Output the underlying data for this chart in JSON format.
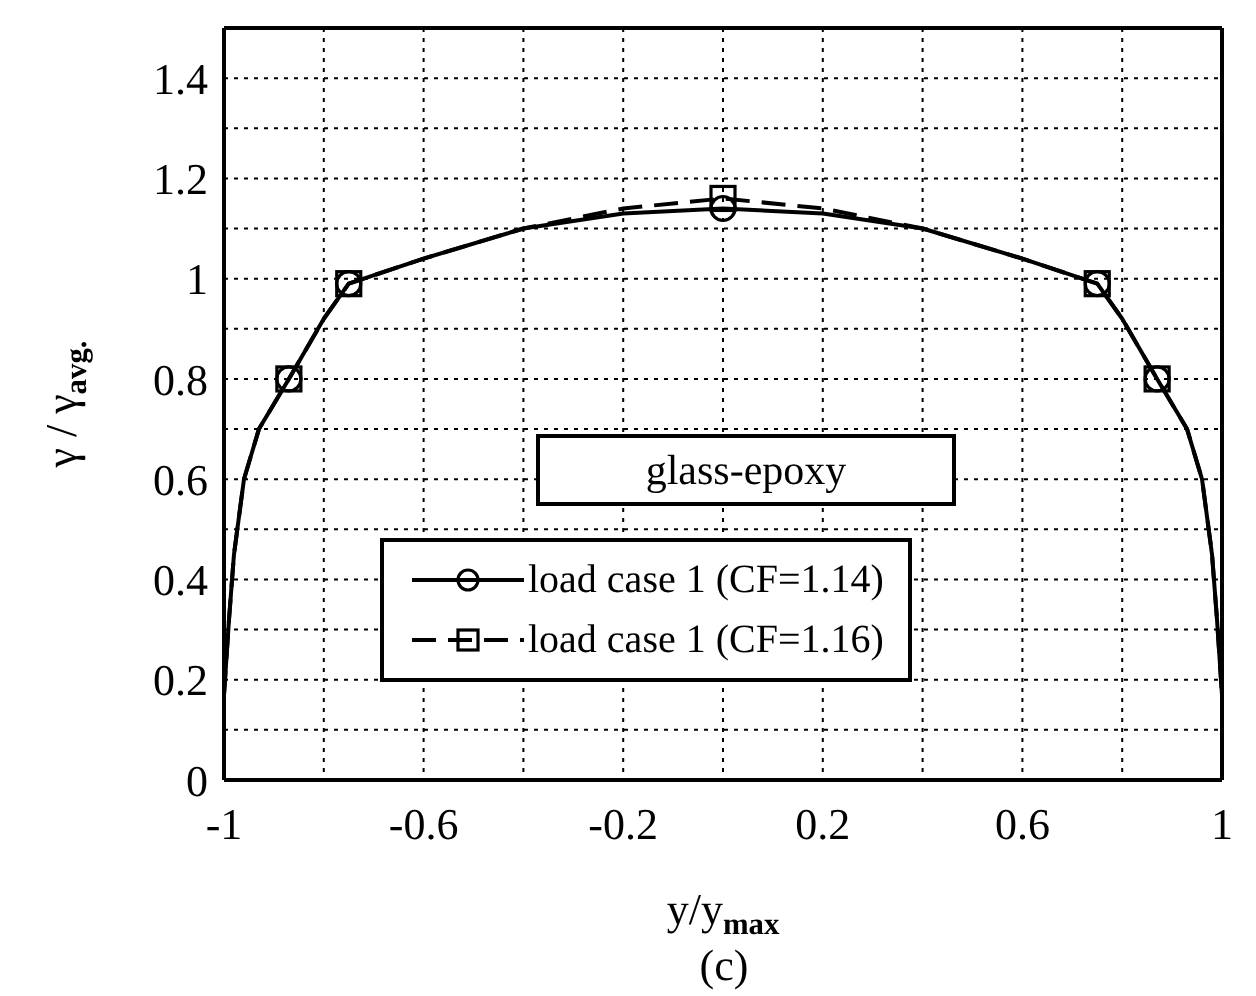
{
  "chart_data": {
    "type": "line",
    "xlabel": "y/y$_{max}$",
    "ylabel": "γ / γ$_{avg.}$",
    "annotations": [
      "glass-epoxy",
      "(c)"
    ],
    "xlim": [
      -1,
      1
    ],
    "xticks": [
      -1,
      {
        "value": -0.8,
        "label": null
      },
      -0.6,
      {
        "value": -0.4,
        "label": null
      },
      -0.2,
      {
        "value": 0,
        "label": null
      },
      0.2,
      {
        "value": 0.4,
        "label": null
      },
      0.6,
      {
        "value": 0.8,
        "label": null
      },
      1
    ],
    "ylim": [
      0,
      1.5
    ],
    "yticks": [
      0,
      {
        "value": 0.1,
        "label": null
      },
      0.2,
      {
        "value": 0.3,
        "label": null
      },
      0.4,
      {
        "value": 0.5,
        "label": null
      },
      0.6,
      {
        "value": 0.7,
        "label": null
      },
      0.8,
      {
        "value": 0.9,
        "label": null
      },
      1,
      {
        "value": 1.1,
        "label": null
      },
      1.2,
      {
        "value": 1.3,
        "label": null
      },
      1.4,
      {
        "value": 1.5,
        "label": null
      }
    ],
    "grid": true,
    "legend": "bottom",
    "series": [
      {
        "name": "load case 1 (CF=1.14)",
        "color": "#000000",
        "line_style": "solid",
        "marker": "none",
        "x": [
          -1,
          -0.99,
          -0.98,
          -0.96,
          -0.93,
          -0.87,
          -0.8,
          -0.75,
          -0.6,
          -0.4,
          -0.2,
          0,
          0.2,
          0.4,
          0.6,
          0.75,
          0.8,
          0.87,
          0.93,
          0.96,
          0.98,
          0.99,
          1
        ],
        "values": [
          0.17,
          0.32,
          0.45,
          0.6,
          0.7,
          0.8,
          0.92,
          0.99,
          1.04,
          1.1,
          1.13,
          1.14,
          1.13,
          1.1,
          1.04,
          0.99,
          0.92,
          0.8,
          0.7,
          0.6,
          0.45,
          0.32,
          0.17
        ]
      },
      {
        "type": "scatter",
        "color": "#000000",
        "marker": "circle",
        "x": [
          -0.87,
          -0.75,
          0,
          0.75,
          0.87
        ],
        "values": [
          0.8,
          0.99,
          1.14,
          0.99,
          0.8
        ]
      },
      {
        "name": "load case 1 (CF=1.16)",
        "color": "#000000",
        "line_style": "dashed",
        "marker": "none",
        "x": [
          -1,
          -0.99,
          -0.98,
          -0.96,
          -0.93,
          -0.87,
          -0.8,
          -0.75,
          -0.6,
          -0.4,
          -0.2,
          0,
          0.2,
          0.4,
          0.6,
          0.75,
          0.8,
          0.87,
          0.93,
          0.96,
          0.98,
          0.99,
          1
        ],
        "values": [
          0.17,
          0.32,
          0.45,
          0.6,
          0.7,
          0.8,
          0.92,
          0.99,
          1.04,
          1.1,
          1.14,
          1.16,
          1.14,
          1.1,
          1.04,
          0.99,
          0.92,
          0.8,
          0.7,
          0.6,
          0.45,
          0.32,
          0.17
        ]
      },
      {
        "type": "scatter",
        "color": "#000000",
        "marker": "square",
        "x": [
          -0.87,
          -0.75,
          0,
          0.75,
          0.87
        ],
        "values": [
          0.8,
          0.99,
          1.16,
          0.99,
          0.8
        ]
      }
    ]
  }
}
